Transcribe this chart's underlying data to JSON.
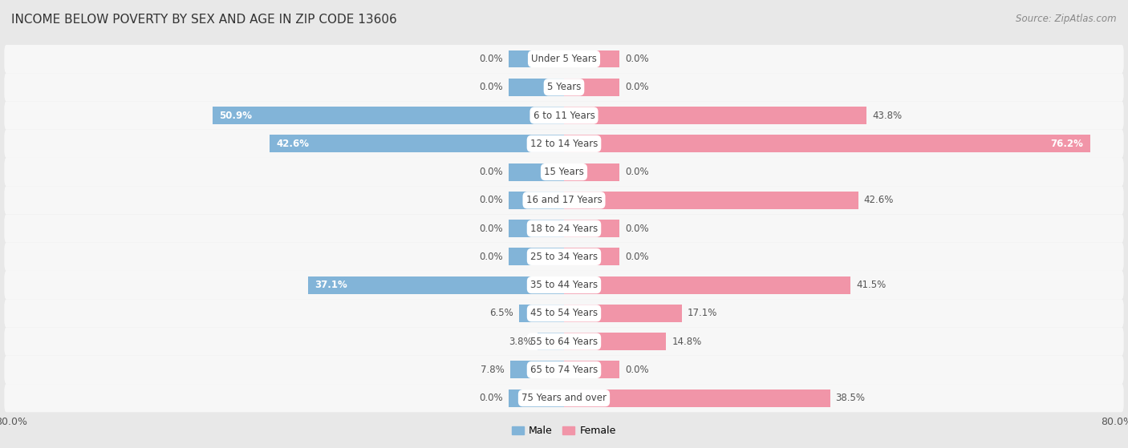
{
  "title": "INCOME BELOW POVERTY BY SEX AND AGE IN ZIP CODE 13606",
  "source": "Source: ZipAtlas.com",
  "categories": [
    "Under 5 Years",
    "5 Years",
    "6 to 11 Years",
    "12 to 14 Years",
    "15 Years",
    "16 and 17 Years",
    "18 to 24 Years",
    "25 to 34 Years",
    "35 to 44 Years",
    "45 to 54 Years",
    "55 to 64 Years",
    "65 to 74 Years",
    "75 Years and over"
  ],
  "male": [
    0.0,
    0.0,
    50.9,
    42.6,
    0.0,
    0.0,
    0.0,
    0.0,
    37.1,
    6.5,
    3.8,
    7.8,
    0.0
  ],
  "female": [
    0.0,
    0.0,
    43.8,
    76.2,
    0.0,
    42.6,
    0.0,
    0.0,
    41.5,
    17.1,
    14.8,
    0.0,
    38.5
  ],
  "male_color": "#82b4d8",
  "female_color": "#f195a8",
  "male_label": "Male",
  "female_label": "Female",
  "xlim": 80.0,
  "bg_color": "#e8e8e8",
  "bar_bg_color": "#f7f7f7",
  "title_fontsize": 11,
  "source_fontsize": 8.5,
  "label_fontsize": 8.5,
  "bar_height": 0.62,
  "stub_size": 8.0
}
